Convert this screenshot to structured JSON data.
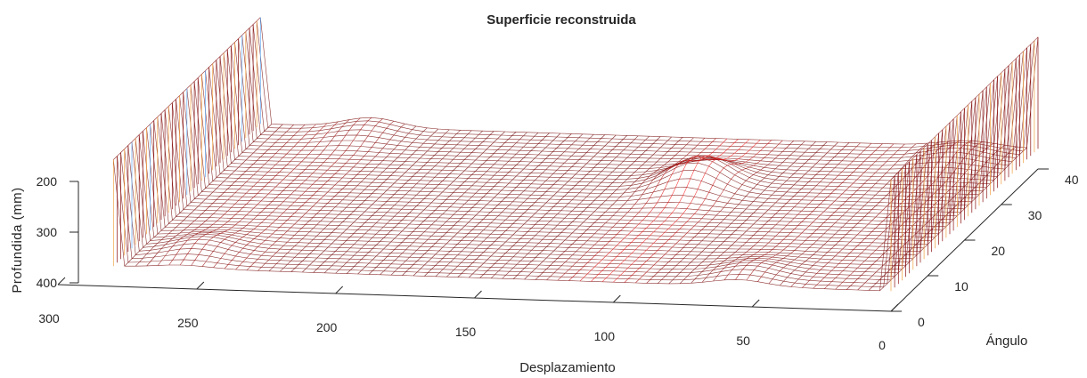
{
  "chart_data": {
    "type": "surface",
    "title": "Superficie reconstruida",
    "xlabel": "Desplazamiento",
    "ylabel": "Ángulo",
    "zlabel": "Profundida (mm)",
    "x_ticks": [
      "300",
      "250",
      "200",
      "150",
      "100",
      "50",
      "0"
    ],
    "y_ticks": [
      "0",
      "10",
      "20",
      "30",
      "40"
    ],
    "z_ticks": [
      "200",
      "300",
      "400"
    ],
    "xlim": [
      0,
      300
    ],
    "ylim": [
      0,
      40
    ],
    "zlim": [
      200,
      400
    ],
    "z_direction": "reversed",
    "grid": false,
    "colormap": "red wireframe",
    "surface": {
      "base_depth": 360,
      "edge_walls": [
        {
          "x": 0,
          "top_depth": 140
        },
        {
          "x": 280,
          "top_depth": 150
        }
      ],
      "bumps": [
        {
          "x": 105,
          "y": 27,
          "height": 55
        },
        {
          "x": 240,
          "y": 39,
          "height": 20
        },
        {
          "x": 25,
          "y": 37,
          "height": 18
        },
        {
          "x": 255,
          "y": 5,
          "height": 22
        },
        {
          "x": 55,
          "y": 3,
          "height": 20
        }
      ]
    }
  }
}
